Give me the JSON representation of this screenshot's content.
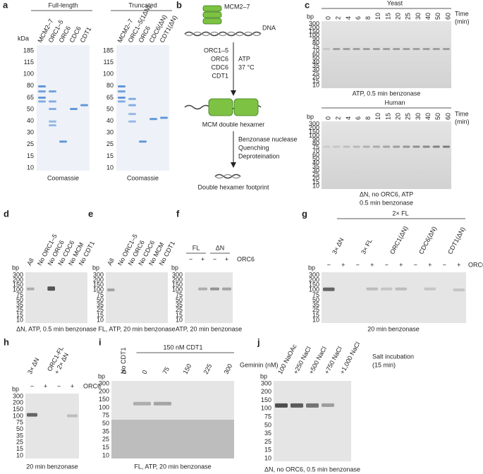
{
  "a": {
    "letter": "a",
    "titles": [
      "Full-length",
      "Truncated"
    ],
    "unit": "kDa",
    "markers": [
      185,
      115,
      100,
      80,
      65,
      50,
      40,
      30,
      25,
      15,
      10
    ],
    "lanes": [
      [
        "MCM2–7",
        "ORC1–5",
        "ORC6",
        "CDC6",
        "CDT1"
      ],
      [
        "MCM2–7",
        "ORC1–5(1ΔN)",
        "ORC6",
        "CDC6(ΔN)",
        "CDT1(ΔN)"
      ]
    ],
    "caption": "Coomassie"
  },
  "b": {
    "letter": "b",
    "mcm": "MCM2–7",
    "dna": "DNA",
    "reagents": [
      "ORC1–5",
      "ORC6",
      "CDC6",
      "CDT1"
    ],
    "conditions": [
      "ATP",
      "37 °C"
    ],
    "hexamer": "MCM double hexamer",
    "steps": [
      "Benzonase nuclease",
      "Quenching",
      "Deproteination"
    ],
    "footprint": "Double hexamer footprint"
  },
  "c": {
    "letter": "c",
    "unit": "bp",
    "time_label": [
      "Time",
      "(min)"
    ],
    "times": [
      0,
      2,
      4,
      6,
      8,
      10,
      15,
      20,
      25,
      30,
      40,
      50,
      60
    ],
    "markers": [
      300,
      200,
      150,
      100,
      90,
      80,
      75,
      70,
      60,
      50,
      40,
      35,
      30,
      25,
      20,
      15,
      10
    ],
    "gels": [
      {
        "title": "Yeast",
        "caption": [
          "ATP, 0.5 min benzonase"
        ]
      },
      {
        "title": "Human",
        "caption": [
          "ΔN, no ORC6, ATP",
          "0.5 min benzonase"
        ]
      }
    ]
  },
  "markers": [
    300,
    200,
    150,
    100,
    75,
    50,
    35,
    25,
    15,
    10
  ],
  "unit": "bp",
  "d": {
    "letter": "d",
    "lanes": [
      "All",
      "No ORC1–5",
      "No ORC6",
      "No CDC6",
      "No MCM",
      "No CDT1"
    ],
    "caption": "ΔN, ATP, 0.5 min benzonase"
  },
  "e": {
    "letter": "e",
    "lanes": [
      "All",
      "No ORC1–5",
      "No ORC6",
      "No CDC6",
      "No MCM",
      "No CDT1"
    ],
    "caption": "FL, ATP, 20 min benzonase"
  },
  "f": {
    "letter": "f",
    "groups": [
      "FL",
      "ΔN"
    ],
    "signs": [
      "−",
      "+",
      "−",
      "+"
    ],
    "factor": "ORC6",
    "caption": "ATP, 20 min benzonase"
  },
  "g": {
    "letter": "g",
    "over": "2× FL",
    "groups": [
      "3× ΔN",
      "3× FL",
      "ORC1(ΔN)",
      "CDC6(ΔN)",
      "CDT1(ΔN)"
    ],
    "signs": [
      "−",
      "+",
      "−",
      "+",
      "−",
      "+",
      "−",
      "+",
      "−",
      "+"
    ],
    "factor": "ORC6",
    "caption": "20 min benzonase"
  },
  "h": {
    "letter": "h",
    "groups": [
      "3× ΔN",
      [
        "ORC1-FL",
        "+ 2× ΔN"
      ]
    ],
    "signs": [
      "−",
      "+",
      "−",
      "+"
    ],
    "factor": "ORC6",
    "caption": "20 min benzonase"
  },
  "i": {
    "letter": "i",
    "no": "No CDT1",
    "with": "150 nM CDT1",
    "lanes": [
      0,
      0,
      75,
      150,
      225,
      300
    ],
    "axis": "Geminin (nM)",
    "caption": "FL, ATP, 20 min benzonase"
  },
  "j": {
    "letter": "j",
    "lanes": [
      "100 NaOAc",
      "+250 NaCl",
      "+500 NaCl",
      "+750 NaCl",
      "+1,000 NaCl"
    ],
    "note": [
      "Salt incubation",
      "(15 min)"
    ],
    "caption": "ΔN, no ORC6, 0.5 min benzonase"
  }
}
